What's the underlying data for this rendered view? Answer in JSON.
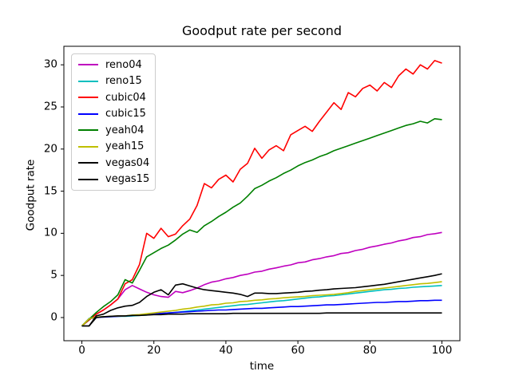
{
  "figure": {
    "background": "#ffffff",
    "spine_color": "#000000",
    "text_color": "#000000"
  },
  "chart_data": {
    "type": "line",
    "title": "Goodput rate per second",
    "xlabel": "time",
    "ylabel": "Goodput rate",
    "xlim": [
      -5,
      105
    ],
    "ylim": [
      -2.75,
      32.2
    ],
    "xticks": [
      0,
      20,
      40,
      60,
      80,
      100
    ],
    "yticks": [
      0,
      5,
      10,
      15,
      20,
      25,
      30
    ],
    "grid": false,
    "legend_position": "upper left",
    "x": [
      0,
      2,
      4,
      6,
      8,
      10,
      12,
      14,
      16,
      18,
      20,
      22,
      24,
      26,
      28,
      30,
      32,
      34,
      36,
      38,
      40,
      42,
      44,
      46,
      48,
      50,
      52,
      54,
      56,
      58,
      60,
      62,
      64,
      66,
      68,
      70,
      72,
      74,
      76,
      78,
      80,
      82,
      84,
      86,
      88,
      90,
      92,
      94,
      96,
      98,
      100
    ],
    "series": [
      {
        "name": "reno04",
        "color": "#bf00bf",
        "values": [
          -1,
          -0.2,
          0.4,
          0.9,
          1.5,
          2.2,
          3.3,
          3.8,
          3.4,
          3.0,
          2.7,
          2.5,
          2.4,
          3.1,
          2.95,
          3.2,
          3.5,
          3.9,
          4.2,
          4.35,
          4.6,
          4.75,
          5.0,
          5.15,
          5.4,
          5.5,
          5.75,
          5.9,
          6.1,
          6.25,
          6.5,
          6.6,
          6.85,
          7.0,
          7.2,
          7.35,
          7.6,
          7.7,
          7.95,
          8.1,
          8.35,
          8.5,
          8.7,
          8.85,
          9.1,
          9.25,
          9.5,
          9.6,
          9.85,
          9.95,
          10.1
        ]
      },
      {
        "name": "reno15",
        "color": "#00bfbf",
        "values": [
          -1,
          -0.1,
          0.05,
          0.1,
          0.1,
          0.15,
          0.15,
          0.2,
          0.25,
          0.3,
          0.4,
          0.45,
          0.55,
          0.6,
          0.7,
          0.8,
          0.9,
          1.0,
          1.1,
          1.2,
          1.3,
          1.4,
          1.5,
          1.55,
          1.65,
          1.75,
          1.85,
          1.95,
          2.0,
          2.1,
          2.2,
          2.3,
          2.4,
          2.45,
          2.55,
          2.6,
          2.7,
          2.8,
          2.9,
          3.0,
          3.1,
          3.2,
          3.3,
          3.35,
          3.45,
          3.5,
          3.6,
          3.65,
          3.7,
          3.75,
          3.8
        ]
      },
      {
        "name": "cubic04",
        "color": "#ff0000",
        "values": [
          -1,
          -0.3,
          0.4,
          0.9,
          1.5,
          2.2,
          4.0,
          4.5,
          6.3,
          10.0,
          9.4,
          10.6,
          9.6,
          9.9,
          10.9,
          11.7,
          13.3,
          15.9,
          15.4,
          16.4,
          16.9,
          16.1,
          17.6,
          18.3,
          20.1,
          18.9,
          19.9,
          20.4,
          19.8,
          21.7,
          22.2,
          22.7,
          22.1,
          23.3,
          24.4,
          25.5,
          24.7,
          26.7,
          26.2,
          27.2,
          27.6,
          26.9,
          27.9,
          27.3,
          28.7,
          29.5,
          28.9,
          30.0,
          29.5,
          30.5,
          30.2
        ]
      },
      {
        "name": "cubic15",
        "color": "#0000ff",
        "values": [
          -1,
          -0.15,
          0.0,
          0.05,
          0.1,
          0.15,
          0.2,
          0.25,
          0.3,
          0.35,
          0.45,
          0.5,
          0.55,
          0.6,
          0.65,
          0.7,
          0.75,
          0.8,
          0.85,
          0.9,
          0.9,
          0.95,
          1.0,
          1.05,
          1.1,
          1.1,
          1.15,
          1.2,
          1.25,
          1.3,
          1.3,
          1.35,
          1.4,
          1.45,
          1.5,
          1.5,
          1.55,
          1.6,
          1.65,
          1.7,
          1.75,
          1.8,
          1.8,
          1.85,
          1.9,
          1.9,
          1.95,
          2.0,
          2.0,
          2.05,
          2.05
        ]
      },
      {
        "name": "yeah04",
        "color": "#008000",
        "values": [
          -1,
          -0.2,
          0.6,
          1.3,
          1.9,
          2.7,
          4.5,
          4.1,
          5.6,
          7.2,
          7.7,
          8.2,
          8.6,
          9.2,
          9.9,
          10.4,
          10.1,
          10.9,
          11.4,
          12.0,
          12.5,
          13.1,
          13.6,
          14.4,
          15.3,
          15.7,
          16.2,
          16.6,
          17.1,
          17.5,
          18.0,
          18.4,
          18.7,
          19.1,
          19.4,
          19.8,
          20.1,
          20.4,
          20.7,
          21.0,
          21.3,
          21.6,
          21.9,
          22.2,
          22.5,
          22.8,
          23.0,
          23.3,
          23.1,
          23.6,
          23.5
        ]
      },
      {
        "name": "yeah15",
        "color": "#bfbf00",
        "values": [
          -1,
          -0.15,
          0.05,
          0.1,
          0.15,
          0.2,
          0.2,
          0.3,
          0.35,
          0.45,
          0.55,
          0.65,
          0.75,
          0.85,
          1.0,
          1.1,
          1.25,
          1.35,
          1.5,
          1.55,
          1.7,
          1.75,
          1.9,
          1.95,
          2.05,
          2.1,
          2.2,
          2.25,
          2.35,
          2.4,
          2.45,
          2.5,
          2.6,
          2.65,
          2.7,
          2.75,
          2.85,
          2.95,
          3.1,
          3.2,
          3.3,
          3.4,
          3.5,
          3.6,
          3.7,
          3.8,
          3.9,
          4.0,
          4.05,
          4.15,
          4.25
        ]
      },
      {
        "name": "vegas04",
        "color": "#000000",
        "values": [
          -1,
          -1,
          0.2,
          0.4,
          0.85,
          1.15,
          1.35,
          1.45,
          1.8,
          2.5,
          3.0,
          3.3,
          2.7,
          3.85,
          4.0,
          3.75,
          3.5,
          3.3,
          3.2,
          3.1,
          3.0,
          2.9,
          2.75,
          2.5,
          2.9,
          2.9,
          2.85,
          2.85,
          2.9,
          2.95,
          3.0,
          3.1,
          3.15,
          3.25,
          3.3,
          3.4,
          3.45,
          3.5,
          3.55,
          3.65,
          3.75,
          3.85,
          3.95,
          4.1,
          4.25,
          4.4,
          4.55,
          4.7,
          4.85,
          5.0,
          5.2
        ]
      },
      {
        "name": "vegas15",
        "color": "#000000",
        "values": [
          -1,
          -1,
          0.0,
          0.1,
          0.15,
          0.2,
          0.2,
          0.25,
          0.25,
          0.3,
          0.35,
          0.35,
          0.4,
          0.4,
          0.4,
          0.45,
          0.45,
          0.45,
          0.45,
          0.45,
          0.45,
          0.5,
          0.5,
          0.5,
          0.5,
          0.5,
          0.5,
          0.5,
          0.5,
          0.5,
          0.5,
          0.5,
          0.5,
          0.5,
          0.55,
          0.55,
          0.55,
          0.55,
          0.55,
          0.55,
          0.55,
          0.55,
          0.55,
          0.55,
          0.55,
          0.55,
          0.55,
          0.55,
          0.55,
          0.55,
          0.55
        ]
      }
    ]
  }
}
